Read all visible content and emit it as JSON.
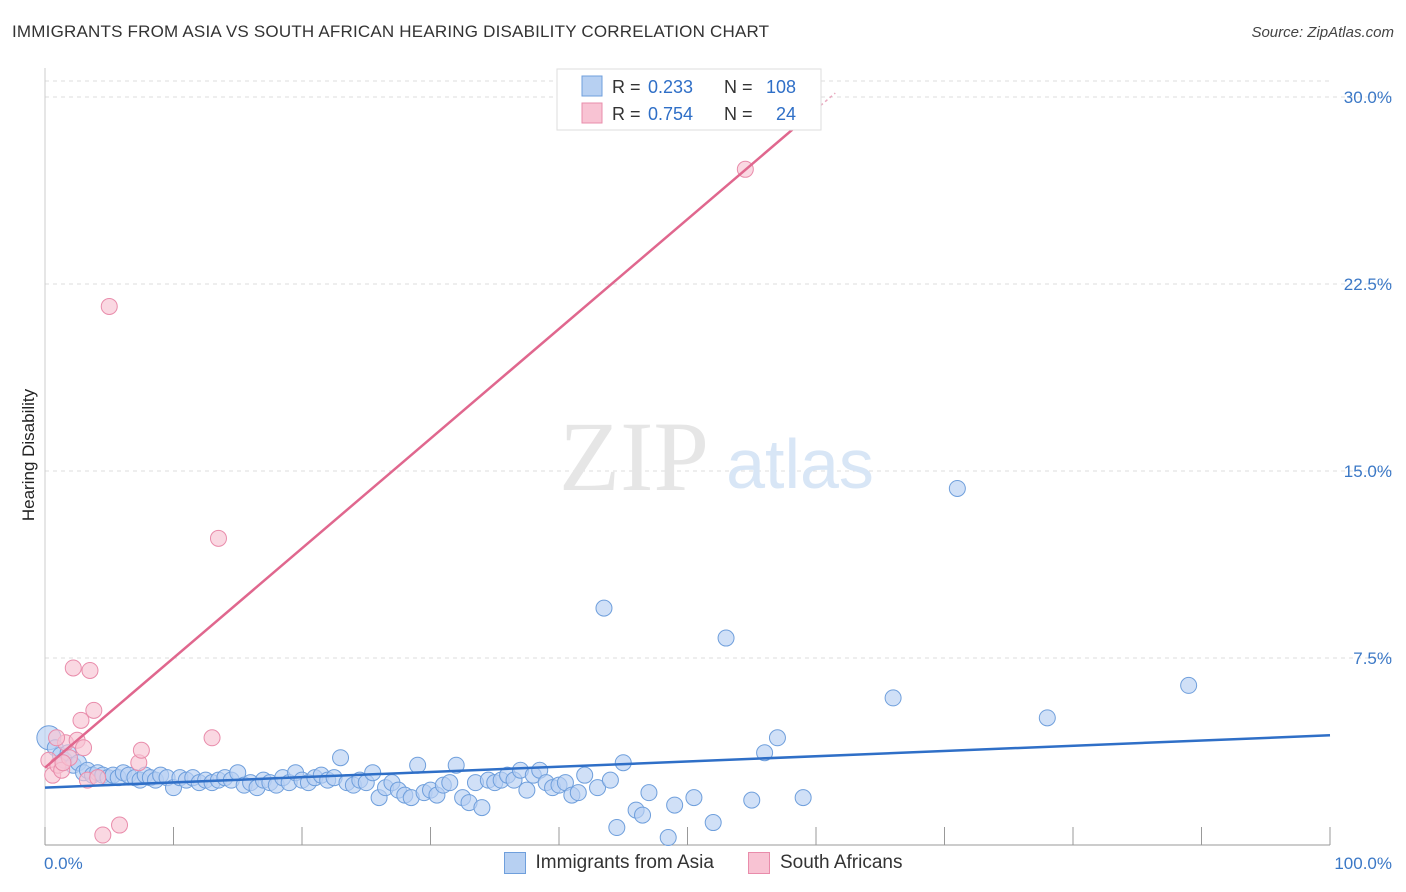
{
  "header": {
    "title": "IMMIGRANTS FROM ASIA VS SOUTH AFRICAN HEARING DISABILITY CORRELATION CHART",
    "source": "Source: ZipAtlas.com"
  },
  "watermark": {
    "zip": "ZIP",
    "atlas": "atlas"
  },
  "colors": {
    "blue_fill": "#b7d0f2",
    "blue_stroke": "#6f9fdc",
    "blue_line": "#2f6fc7",
    "pink_fill": "#f8c3d3",
    "pink_stroke": "#e98cab",
    "pink_line": "#e0678e",
    "tick_text": "#3b78c6",
    "grid": "#dddddd"
  },
  "legend": {
    "rows": [
      {
        "r_label": "R =",
        "r_value": "0.233",
        "n_label": "N =",
        "n_value": "108"
      },
      {
        "r_label": "R =",
        "r_value": "0.754",
        "n_label": "N =",
        "n_value": "24"
      }
    ]
  },
  "chart_data": {
    "type": "scatter",
    "title": "IMMIGRANTS FROM ASIA VS SOUTH AFRICAN HEARING DISABILITY CORRELATION CHART",
    "xlabel": "",
    "ylabel": "Hearing Disability",
    "xlim": [
      0,
      100
    ],
    "ylim": [
      0,
      31
    ],
    "x_tick_labels": [
      "0.0%",
      "100.0%"
    ],
    "y_ticks": [
      7.5,
      15.0,
      22.5,
      30.0
    ],
    "y_tick_labels": [
      "7.5%",
      "15.0%",
      "22.5%",
      "30.0%"
    ],
    "grid": true,
    "legend_position": "top-center",
    "series": [
      {
        "name": "Immigrants from Asia",
        "R": 0.233,
        "N": 108,
        "trend": {
          "x": [
            0,
            100
          ],
          "y": [
            2.3,
            4.4
          ]
        },
        "points": [
          [
            0.3,
            4.3
          ],
          [
            0.8,
            3.9
          ],
          [
            1.2,
            3.6
          ],
          [
            1.5,
            3.4
          ],
          [
            1.8,
            3.7
          ],
          [
            2.2,
            3.2
          ],
          [
            2.6,
            3.3
          ],
          [
            3.0,
            2.9
          ],
          [
            3.3,
            3.0
          ],
          [
            3.7,
            2.8
          ],
          [
            4.1,
            2.9
          ],
          [
            4.5,
            2.8
          ],
          [
            4.9,
            2.7
          ],
          [
            5.3,
            2.8
          ],
          [
            5.7,
            2.7
          ],
          [
            6.1,
            2.9
          ],
          [
            6.5,
            2.8
          ],
          [
            7.0,
            2.7
          ],
          [
            7.4,
            2.6
          ],
          [
            7.8,
            2.8
          ],
          [
            8.2,
            2.7
          ],
          [
            8.6,
            2.6
          ],
          [
            9.0,
            2.8
          ],
          [
            9.5,
            2.7
          ],
          [
            10.0,
            2.3
          ],
          [
            10.5,
            2.7
          ],
          [
            11.0,
            2.6
          ],
          [
            11.5,
            2.7
          ],
          [
            12.0,
            2.5
          ],
          [
            12.5,
            2.6
          ],
          [
            13.0,
            2.5
          ],
          [
            13.5,
            2.6
          ],
          [
            14.0,
            2.7
          ],
          [
            14.5,
            2.6
          ],
          [
            15.0,
            2.9
          ],
          [
            15.5,
            2.4
          ],
          [
            16.0,
            2.5
          ],
          [
            16.5,
            2.3
          ],
          [
            17.0,
            2.6
          ],
          [
            17.5,
            2.5
          ],
          [
            18.0,
            2.4
          ],
          [
            18.5,
            2.7
          ],
          [
            19.0,
            2.5
          ],
          [
            19.5,
            2.9
          ],
          [
            20.0,
            2.6
          ],
          [
            20.5,
            2.5
          ],
          [
            21.0,
            2.7
          ],
          [
            21.5,
            2.8
          ],
          [
            22.0,
            2.6
          ],
          [
            22.5,
            2.7
          ],
          [
            23.0,
            3.5
          ],
          [
            23.5,
            2.5
          ],
          [
            24.0,
            2.4
          ],
          [
            24.5,
            2.6
          ],
          [
            25.0,
            2.5
          ],
          [
            25.5,
            2.9
          ],
          [
            26.0,
            1.9
          ],
          [
            26.5,
            2.3
          ],
          [
            27.0,
            2.5
          ],
          [
            27.5,
            2.2
          ],
          [
            28.0,
            2.0
          ],
          [
            28.5,
            1.9
          ],
          [
            29.0,
            3.2
          ],
          [
            29.5,
            2.1
          ],
          [
            30.0,
            2.2
          ],
          [
            30.5,
            2.0
          ],
          [
            31.0,
            2.4
          ],
          [
            31.5,
            2.5
          ],
          [
            32.0,
            3.2
          ],
          [
            32.5,
            1.9
          ],
          [
            33.0,
            1.7
          ],
          [
            33.5,
            2.5
          ],
          [
            34.0,
            1.5
          ],
          [
            34.5,
            2.6
          ],
          [
            35.0,
            2.5
          ],
          [
            35.5,
            2.6
          ],
          [
            36.0,
            2.8
          ],
          [
            36.5,
            2.6
          ],
          [
            37.0,
            3.0
          ],
          [
            37.5,
            2.2
          ],
          [
            38.0,
            2.8
          ],
          [
            38.5,
            3.0
          ],
          [
            39.0,
            2.5
          ],
          [
            39.5,
            2.3
          ],
          [
            40.0,
            2.4
          ],
          [
            40.5,
            2.5
          ],
          [
            41.0,
            2.0
          ],
          [
            41.5,
            2.1
          ],
          [
            42.0,
            2.8
          ],
          [
            43.0,
            2.3
          ],
          [
            44.0,
            2.6
          ],
          [
            43.5,
            9.5
          ],
          [
            45.0,
            3.3
          ],
          [
            46.0,
            1.4
          ],
          [
            46.5,
            1.2
          ],
          [
            47.0,
            2.1
          ],
          [
            48.5,
            0.3
          ],
          [
            49.0,
            1.6
          ],
          [
            50.5,
            1.9
          ],
          [
            52.0,
            0.9
          ],
          [
            53.0,
            8.3
          ],
          [
            55.0,
            1.8
          ],
          [
            56.0,
            3.7
          ],
          [
            57.0,
            4.3
          ],
          [
            59.0,
            1.9
          ],
          [
            66.0,
            5.9
          ],
          [
            71.0,
            14.3
          ],
          [
            78.0,
            5.1
          ],
          [
            89.0,
            6.4
          ],
          [
            44.5,
            0.7
          ]
        ]
      },
      {
        "name": "South Africans",
        "R": 0.754,
        "N": 24,
        "trend": {
          "x": [
            0,
            60
          ],
          "y": [
            3.1,
            29.5
          ]
        },
        "points": [
          [
            0.3,
            3.4
          ],
          [
            0.6,
            2.8
          ],
          [
            1.0,
            3.2
          ],
          [
            1.3,
            3.0
          ],
          [
            1.6,
            4.1
          ],
          [
            1.9,
            3.5
          ],
          [
            2.2,
            7.1
          ],
          [
            2.5,
            4.2
          ],
          [
            2.8,
            5.0
          ],
          [
            3.0,
            3.9
          ],
          [
            3.3,
            2.6
          ],
          [
            3.5,
            7.0
          ],
          [
            3.8,
            5.4
          ],
          [
            4.1,
            2.7
          ],
          [
            4.5,
            0.4
          ],
          [
            5.0,
            21.6
          ],
          [
            5.8,
            0.8
          ],
          [
            7.3,
            3.3
          ],
          [
            7.5,
            3.8
          ],
          [
            13.0,
            4.3
          ],
          [
            13.5,
            12.3
          ],
          [
            54.5,
            27.1
          ],
          [
            1.4,
            3.3
          ],
          [
            0.9,
            4.3
          ]
        ]
      }
    ]
  },
  "bottom_legend": [
    {
      "label": "Immigrants from Asia"
    },
    {
      "label": "South Africans"
    }
  ]
}
